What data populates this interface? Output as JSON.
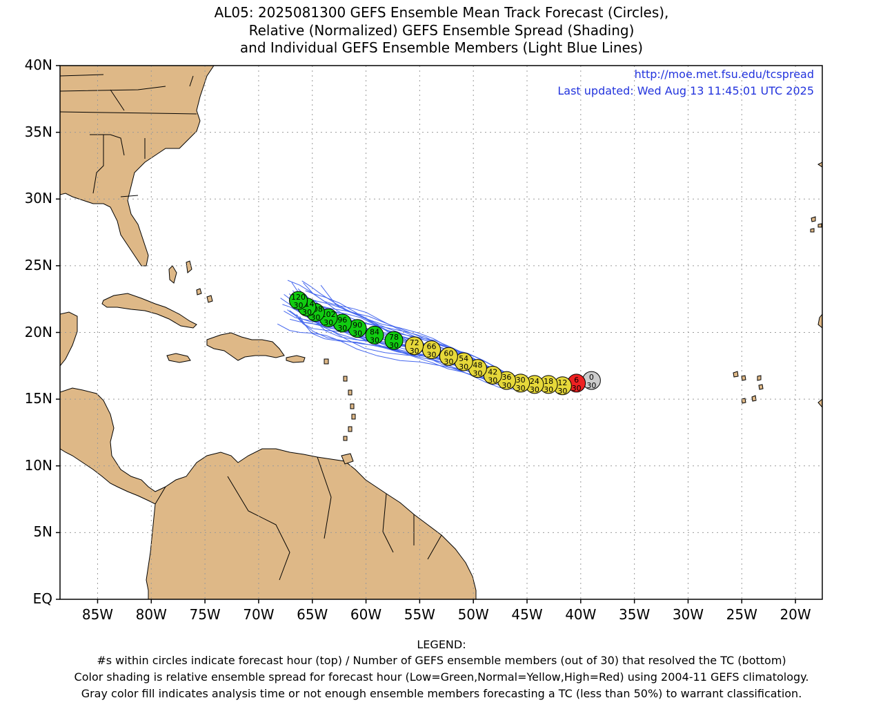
{
  "title": {
    "line1": "AL05: 2025081300 GEFS Ensemble Mean Track Forecast (Circles),",
    "line2": "Relative (Normalized) GEFS Ensemble Spread (Shading)",
    "line3": "and Individual GEFS Ensemble Members (Light Blue Lines)"
  },
  "info": {
    "url": "http://moe.met.fsu.edu/tcspread",
    "updated": "Last updated: Wed Aug 13 11:45:01 UTC 2025"
  },
  "axes": {
    "lat_labels": [
      "40N",
      "35N",
      "30N",
      "25N",
      "20N",
      "15N",
      "10N",
      "5N",
      "EQ"
    ],
    "lon_labels": [
      "85W",
      "80W",
      "75W",
      "70W",
      "65W",
      "60W",
      "55W",
      "50W",
      "45W",
      "40W",
      "35W",
      "30W",
      "25W",
      "20W"
    ],
    "lon_range": [
      -88.5,
      -17.5
    ],
    "lat_range": [
      0,
      40
    ],
    "grid": "dotted"
  },
  "colors": {
    "land": "#deb887",
    "green": "#11cc11",
    "yellow": "#e6d83a",
    "red": "#ee2222",
    "gray": "#cccccc",
    "member_lines": "#4466ee"
  },
  "track": [
    {
      "hour": "0",
      "members": "30",
      "lon": -39.0,
      "lat": 16.4,
      "color": "gray"
    },
    {
      "hour": "6",
      "members": "30",
      "lon": -40.4,
      "lat": 16.2,
      "color": "red"
    },
    {
      "hour": "12",
      "members": "30",
      "lon": -41.7,
      "lat": 16.0,
      "color": "yellow"
    },
    {
      "hour": "18",
      "members": "30",
      "lon": -43.0,
      "lat": 16.1,
      "color": "yellow"
    },
    {
      "hour": "24",
      "members": "30",
      "lon": -44.3,
      "lat": 16.1,
      "color": "yellow"
    },
    {
      "hour": "30",
      "members": "30",
      "lon": -45.6,
      "lat": 16.2,
      "color": "yellow"
    },
    {
      "hour": "36",
      "members": "30",
      "lon": -46.9,
      "lat": 16.4,
      "color": "yellow"
    },
    {
      "hour": "42",
      "members": "30",
      "lon": -48.2,
      "lat": 16.8,
      "color": "yellow"
    },
    {
      "hour": "48",
      "members": "30",
      "lon": -49.6,
      "lat": 17.3,
      "color": "yellow"
    },
    {
      "hour": "54",
      "members": "30",
      "lon": -50.9,
      "lat": 17.8,
      "color": "yellow"
    },
    {
      "hour": "60",
      "members": "30",
      "lon": -52.3,
      "lat": 18.2,
      "color": "yellow"
    },
    {
      "hour": "66",
      "members": "30",
      "lon": -53.9,
      "lat": 18.7,
      "color": "yellow"
    },
    {
      "hour": "72",
      "members": "30",
      "lon": -55.5,
      "lat": 19.0,
      "color": "yellow"
    },
    {
      "hour": "78",
      "members": "30",
      "lon": -57.4,
      "lat": 19.4,
      "color": "green"
    },
    {
      "hour": "84",
      "members": "30",
      "lon": -59.2,
      "lat": 19.8,
      "color": "green"
    },
    {
      "hour": "90",
      "members": "30",
      "lon": -60.8,
      "lat": 20.3,
      "color": "green"
    },
    {
      "hour": "96",
      "members": "30",
      "lon": -62.2,
      "lat": 20.7,
      "color": "green"
    },
    {
      "hour": "102",
      "members": "30",
      "lon": -63.5,
      "lat": 21.1,
      "color": "green"
    },
    {
      "hour": "108",
      "members": "30",
      "lon": -64.7,
      "lat": 21.5,
      "color": "green"
    },
    {
      "hour": "114",
      "members": "30",
      "lon": -65.5,
      "lat": 21.9,
      "color": "green"
    },
    {
      "hour": "120",
      "members": "30",
      "lon": -66.3,
      "lat": 22.4,
      "color": "green"
    }
  ],
  "legend": {
    "heading": "LEGEND:",
    "line1": "#s within circles indicate forecast hour (top) / Number of GEFS ensemble members (out of 30) that resolved the TC (bottom)",
    "line2": "Color shading is relative ensemble spread for forecast hour (Low=Green,Normal=Yellow,High=Red) using 2004-11 GEFS climatology.",
    "line3": "Gray color fill indicates analysis time or not enough ensemble members forecasting a TC (less than 50%) to warrant classification."
  }
}
